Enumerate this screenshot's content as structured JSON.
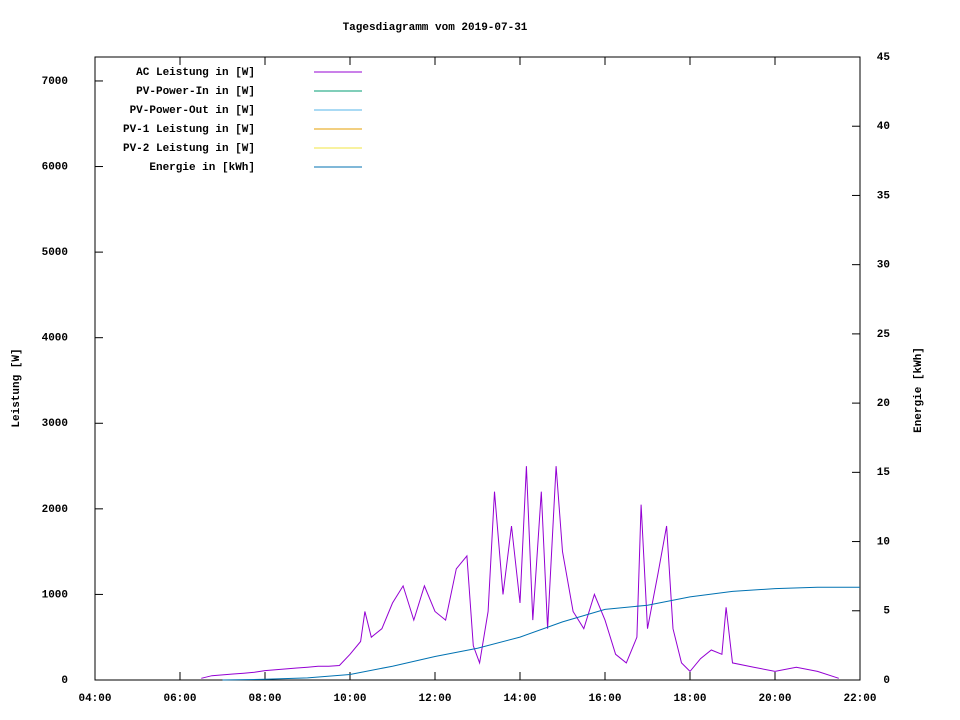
{
  "chart_data": {
    "type": "line",
    "title": "Tagesdiagramm vom 2019-07-31",
    "ylabel": "Leistung [W]",
    "y2label": "Energie [kWh]",
    "xlim": [
      4,
      22
    ],
    "xticks": [
      {
        "value": 4,
        "label": "04:00"
      },
      {
        "value": 6,
        "label": "06:00"
      },
      {
        "value": 8,
        "label": "08:00"
      },
      {
        "value": 10,
        "label": "10:00"
      },
      {
        "value": 12,
        "label": "12:00"
      },
      {
        "value": 14,
        "label": "14:00"
      },
      {
        "value": 16,
        "label": "16:00"
      },
      {
        "value": 18,
        "label": "18:00"
      },
      {
        "value": 20,
        "label": "20:00"
      },
      {
        "value": 22,
        "label": "22:00"
      }
    ],
    "ylim": [
      0,
      7280
    ],
    "yticks": [
      0,
      1000,
      2000,
      3000,
      4000,
      5000,
      6000,
      7000
    ],
    "y2lim": [
      0,
      45
    ],
    "y2ticks": [
      0,
      5,
      10,
      15,
      20,
      25,
      30,
      35,
      40,
      45
    ],
    "legend": "top-left",
    "series": [
      {
        "name": "AC Leistung in [W]",
        "color": "#9400d3",
        "x": [
          6.5,
          6.75,
          7,
          7.25,
          7.5,
          7.75,
          8,
          8.25,
          8.5,
          8.75,
          9,
          9.25,
          9.5,
          9.75,
          10,
          10.25,
          10.35,
          10.5,
          10.75,
          11,
          11.25,
          11.5,
          11.75,
          12,
          12.25,
          12.5,
          12.75,
          12.9,
          13.05,
          13.25,
          13.4,
          13.6,
          13.8,
          14,
          14.15,
          14.3,
          14.5,
          14.65,
          14.85,
          15,
          15.25,
          15.5,
          15.75,
          16,
          16.25,
          16.5,
          16.75,
          16.85,
          17,
          17.25,
          17.45,
          17.6,
          17.8,
          18,
          18.25,
          18.5,
          18.75,
          18.85,
          19,
          19.5,
          20,
          20.5,
          21,
          21.5
        ],
        "values": [
          20,
          50,
          60,
          70,
          80,
          90,
          110,
          120,
          130,
          140,
          150,
          160,
          160,
          170,
          300,
          450,
          800,
          500,
          600,
          900,
          1100,
          700,
          1100,
          800,
          700,
          1300,
          1450,
          400,
          200,
          800,
          2200,
          1000,
          1800,
          900,
          2500,
          700,
          2200,
          600,
          2500,
          1500,
          800,
          600,
          1000,
          700,
          300,
          200,
          500,
          2050,
          600,
          1250,
          1800,
          600,
          200,
          100,
          250,
          350,
          300,
          850,
          200,
          150,
          100,
          150,
          100,
          20
        ]
      },
      {
        "name": "PV-Power-In in [W]",
        "color": "#009e73",
        "x": [],
        "values": []
      },
      {
        "name": "PV-Power-Out in [W]",
        "color": "#56b4e9",
        "x": [],
        "values": []
      },
      {
        "name": "PV-1 Leistung in [W]",
        "color": "#e69f00",
        "x": [],
        "values": []
      },
      {
        "name": "PV-2 Leistung in [W]",
        "color": "#f0e442",
        "x": [],
        "values": []
      },
      {
        "name": "Energie in [kWh]",
        "color": "#0072b2",
        "axis": "y2",
        "x": [
          7,
          8,
          9,
          10,
          11,
          12,
          13,
          14,
          15,
          16,
          17,
          18,
          19,
          20,
          21,
          22
        ],
        "values": [
          0,
          0.05,
          0.15,
          0.4,
          1.0,
          1.7,
          2.3,
          3.1,
          4.2,
          5.1,
          5.4,
          6.0,
          6.4,
          6.6,
          6.7,
          6.7
        ]
      }
    ]
  }
}
